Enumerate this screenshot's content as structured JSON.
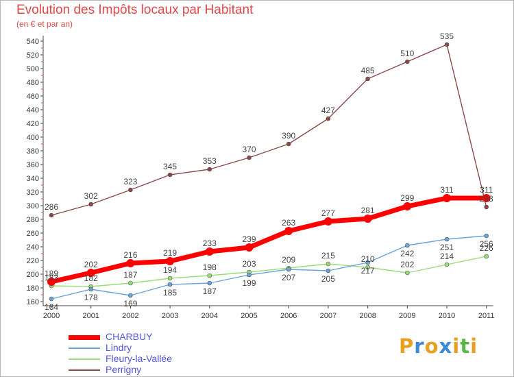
{
  "title": "Evolution des Impôts locaux par Habitant",
  "subtitle": "(en € et par an)",
  "brand": {
    "letters": [
      "P",
      "r",
      "o",
      "x",
      "i",
      "t",
      "i"
    ],
    "colors": [
      "#e8a020",
      "#3a8ad8",
      "#e8a020",
      "#3a8ad8",
      "#e8a020",
      "#58b848",
      "#e8a020"
    ]
  },
  "chart_data": {
    "type": "line",
    "title": "Evolution des Impôts locaux par Habitant",
    "subtitle": "(en € et par an)",
    "x": [
      "2000",
      "2001",
      "2002",
      "2003",
      "2004",
      "2005",
      "2006",
      "2007",
      "2008",
      "2009",
      "2010",
      "2011"
    ],
    "ylim": [
      160,
      540
    ],
    "yticks": [
      160,
      180,
      200,
      220,
      240,
      260,
      280,
      300,
      320,
      340,
      360,
      380,
      400,
      420,
      440,
      460,
      480,
      500,
      520,
      540
    ],
    "grid": false,
    "legend_position": "bottom-left",
    "series": [
      {
        "name": "CHARBUY",
        "color": "#ff0000",
        "values": [
          189,
          202,
          216,
          219,
          233,
          239,
          263,
          277,
          281,
          299,
          311,
          311
        ]
      },
      {
        "name": "Lindry",
        "color": "#6aa3d8",
        "values": [
          164,
          178,
          169,
          185,
          187,
          199,
          207,
          205,
          217,
          242,
          251,
          256
        ]
      },
      {
        "name": "Fleury-la-Vallée",
        "color": "#99dd77",
        "values": [
          183,
          182,
          187,
          194,
          198,
          203,
          209,
          215,
          210,
          202,
          214,
          226
        ]
      },
      {
        "name": "Perrigny",
        "color": "#8a4a4a",
        "values": [
          286,
          302,
          323,
          345,
          353,
          370,
          390,
          427,
          485,
          510,
          535,
          298
        ]
      }
    ]
  }
}
